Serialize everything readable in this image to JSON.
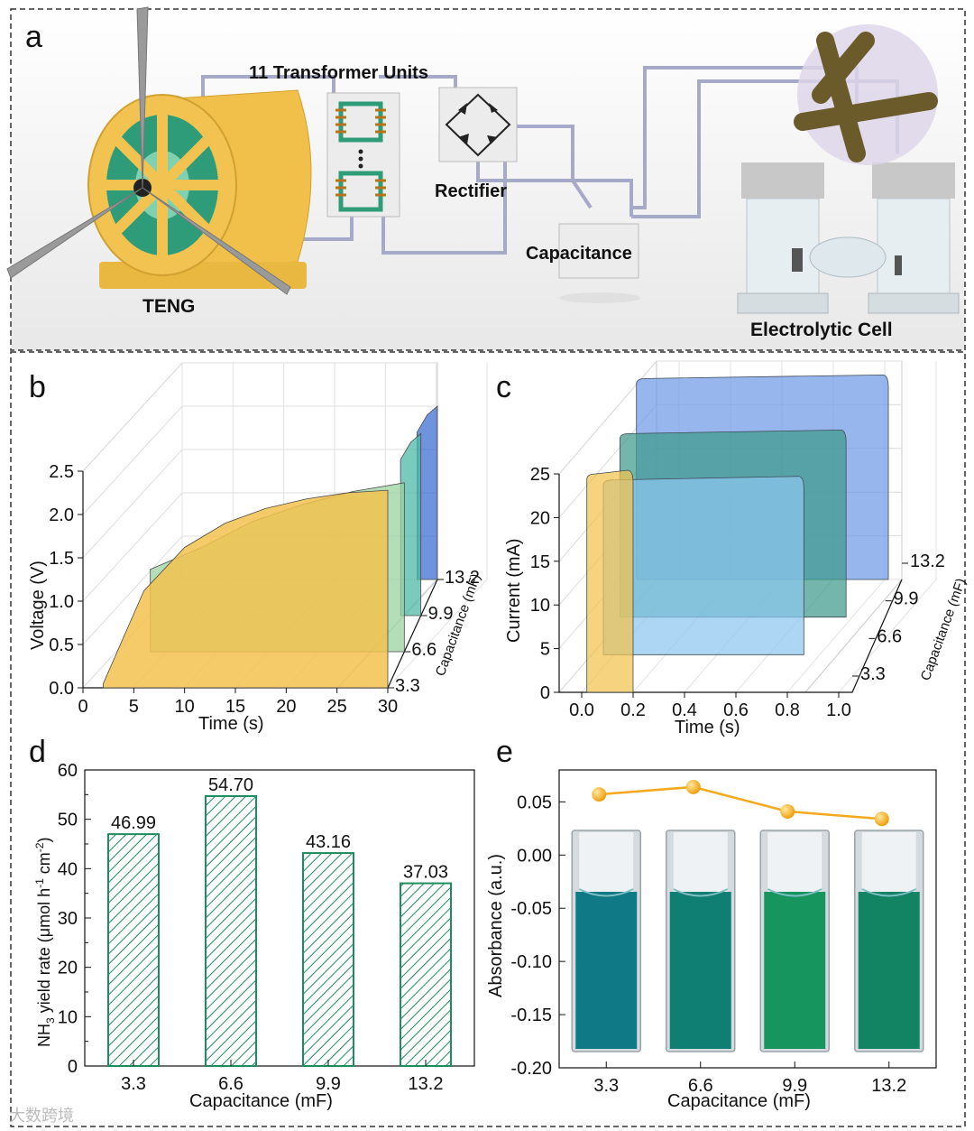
{
  "panel_a": {
    "letter": "a",
    "labels": {
      "transformer": "11 Transformer Units",
      "rectifier": "Rectifier",
      "capacitance": "Capacitance",
      "teng": "TENG",
      "cell": "Electrolytic Cell"
    }
  },
  "chart_data": [
    {
      "panel": "b",
      "type": "area",
      "xlabel": "Time (s)",
      "ylabel": "Voltage (V)",
      "zlabel": "Capacitance (mF)",
      "x_ticks": [
        "0",
        "5",
        "10",
        "15",
        "20",
        "25",
        "30"
      ],
      "y_ticks": [
        "0.0",
        "0.5",
        "1.0",
        "1.5",
        "2.0",
        "2.5"
      ],
      "z_ticks": [
        "3.3",
        "6.6",
        "9.9",
        "13.2"
      ],
      "xlim": [
        0,
        30
      ],
      "ylim": [
        0,
        2.5
      ],
      "series": [
        {
          "name": "3.3",
          "color": "#f2c24e",
          "values": [
            0.05,
            1.12,
            1.62,
            1.9,
            2.07,
            2.18,
            2.25,
            2.28
          ]
        },
        {
          "name": "6.6",
          "color": "#9bd3a0",
          "values": [
            0.95,
            1.2,
            1.5,
            1.7,
            1.85,
            1.95
          ]
        },
        {
          "name": "9.9",
          "color": "#4fb8a8",
          "values": [
            1.8,
            2.0,
            2.1
          ]
        },
        {
          "name": "13.2",
          "color": "#3f6fd1",
          "values": [
            1.7,
            1.9,
            2.0
          ]
        }
      ]
    },
    {
      "panel": "c",
      "type": "area",
      "xlabel": "Time (s)",
      "ylabel": "Current (mA)",
      "zlabel": "Capacitance (mF)",
      "x_ticks": [
        "0.0",
        "0.2",
        "0.4",
        "0.6",
        "0.8",
        "1.0"
      ],
      "y_ticks": [
        "0",
        "5",
        "10",
        "15",
        "20",
        "25"
      ],
      "z_ticks": [
        "3.3",
        "6.6",
        "9.9",
        "13.2"
      ],
      "xlim": [
        0,
        1.0
      ],
      "ylim": [
        0,
        25
      ],
      "series": [
        {
          "name": "3.3",
          "color": "#f2c24e",
          "duration": 0.2,
          "current": 25
        },
        {
          "name": "6.6",
          "color": "#8cc6ee",
          "duration": 0.8,
          "current": 20
        },
        {
          "name": "9.9",
          "color": "#3f9a8a",
          "duration": 0.9,
          "current": 21
        },
        {
          "name": "13.2",
          "color": "#6f9ae6",
          "duration": 1.0,
          "current": 23
        }
      ]
    },
    {
      "panel": "d",
      "type": "bar",
      "title": "",
      "xlabel": "Capacitance (mF)",
      "ylabel": "NH3 yield rate (μmol h-1 cm-2)",
      "ylabel_parts": {
        "a": "NH",
        "sub": "3",
        "b": " yield rate (μmol h",
        "sup1": "-1",
        "c": " cm",
        "sup2": "-2",
        "d": ")"
      },
      "categories": [
        "3.3",
        "6.6",
        "9.9",
        "13.2"
      ],
      "values": [
        46.99,
        54.7,
        43.16,
        37.03
      ],
      "value_labels": [
        "46.99",
        "54.70",
        "43.16",
        "37.03"
      ],
      "y_ticks": [
        "0",
        "10",
        "20",
        "30",
        "40",
        "50",
        "60"
      ],
      "ylim": [
        0,
        60
      ],
      "bar_color": "#1e8c5c"
    },
    {
      "panel": "e",
      "type": "line",
      "xlabel": "Capacitance (mF)",
      "ylabel": "Absorbance (a.u.)",
      "categories": [
        "3.3",
        "6.6",
        "9.9",
        "13.2"
      ],
      "values": [
        0.057,
        0.064,
        0.041,
        0.034
      ],
      "y_ticks": [
        "0.05",
        "0.00",
        "-0.05",
        "-0.10",
        "-0.15",
        "-0.20"
      ],
      "ylim": [
        -0.2,
        0.08
      ],
      "marker_color": "#f5a81c",
      "vial_colors": [
        "#0f7a86",
        "#107f73",
        "#17955e",
        "#138463"
      ]
    }
  ],
  "watermark": "大数跨境"
}
